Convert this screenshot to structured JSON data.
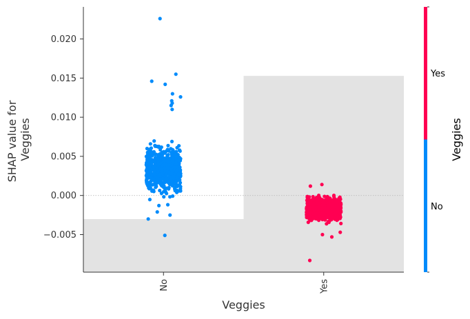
{
  "chart_data": {
    "type": "scatter",
    "subtype": "shap-dependence",
    "title": "",
    "xlabel": "Veggies",
    "ylabel_lines": [
      "SHAP value for",
      "Veggies"
    ],
    "categories": [
      "No",
      "Yes"
    ],
    "ylim": [
      -0.0098,
      0.0241
    ],
    "yticks": [
      -0.005,
      0.0,
      0.005,
      0.01,
      0.015,
      0.02
    ],
    "ytick_labels": [
      "−0.005",
      "0.000",
      "0.005",
      "0.010",
      "0.015",
      "0.020"
    ],
    "zero_line": true,
    "histogram_background": {
      "color": "#e3e3e3",
      "description": "feature value distribution behind the points",
      "heights_relative": [
        0.2,
        0.74
      ]
    },
    "series": [
      {
        "name": "No",
        "category": "No",
        "color": "#008bfb",
        "center": 0.0033,
        "spread": 0.0022,
        "min": -0.0051,
        "max": 0.0226,
        "count": 700,
        "notable_values": [
          0.0226,
          0.0155,
          0.0146,
          0.0142,
          0.013,
          0.0126,
          0.0121,
          0.0118,
          0.0115,
          0.011,
          -0.0021,
          -0.0025,
          -0.003,
          -0.0051
        ]
      },
      {
        "name": "Yes",
        "category": "Yes",
        "color": "#ff0052",
        "center": -0.0017,
        "spread": 0.0011,
        "min": -0.0083,
        "max": 0.0014,
        "count": 900,
        "notable_values": [
          0.0014,
          0.0012,
          -0.0047,
          -0.005,
          -0.0053,
          -0.0083
        ]
      }
    ],
    "colorbar": {
      "title": "Veggies",
      "labels": [
        "Yes",
        "No"
      ],
      "colors": [
        "#ff0052",
        "#008bfb"
      ]
    }
  }
}
